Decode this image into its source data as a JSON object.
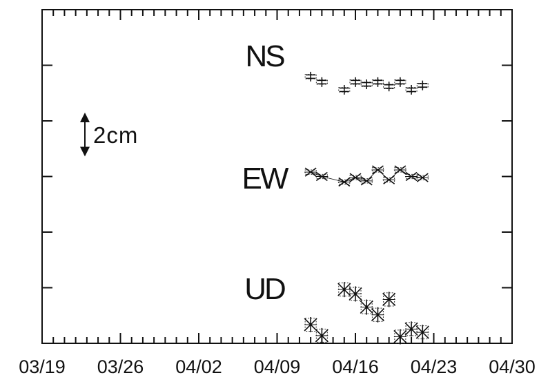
{
  "chart_data": {
    "type": "scatter",
    "title": "",
    "xlabel": "",
    "ylabel": "",
    "x_ticks": [
      "03/19",
      "03/26",
      "04/02",
      "04/09",
      "04/16",
      "04/23",
      "04/30"
    ],
    "x_range": [
      "03/19",
      "04/30"
    ],
    "dates": [
      "04/12",
      "04/13",
      "04/15",
      "04/16",
      "04/17",
      "04/18",
      "04/19",
      "04/20",
      "04/21",
      "04/22",
      "04/23"
    ],
    "y_unit": "cm",
    "y_range_cm": [
      -7.8,
      7.4
    ],
    "scale_bar": {
      "label": "2cm",
      "length_cm": 2
    },
    "series": [
      {
        "name": "NS",
        "marker": "double-plus",
        "values_cm": [
          0.35,
          0.1,
          -0.25,
          0.1,
          0.0,
          0.1,
          -0.1,
          0.1,
          -0.25,
          -0.05,
          null
        ],
        "errors_cm": [
          0.1,
          0.1,
          0.1,
          0.1,
          0.1,
          0.1,
          0.1,
          0.1,
          0.1,
          0.1,
          null
        ]
      },
      {
        "name": "EW",
        "marker": "x",
        "values_cm": [
          0.0,
          -0.2,
          -0.45,
          -0.25,
          -0.4,
          0.1,
          -0.35,
          0.1,
          -0.2,
          -0.25,
          null
        ],
        "errors_cm": [
          0.1,
          0.1,
          0.1,
          0.1,
          0.1,
          0.1,
          0.1,
          0.1,
          0.1,
          0.1,
          null
        ]
      },
      {
        "name": "UD",
        "marker": "asterisk",
        "values_cm": [
          1.05,
          0.55,
          2.65,
          2.45,
          1.85,
          1.5,
          2.2,
          0.5,
          0.85,
          0.7,
          null
        ],
        "errors_cm": [
          0.3,
          0.3,
          0.3,
          0.3,
          0.3,
          0.3,
          0.3,
          0.3,
          0.3,
          0.3,
          null
        ]
      }
    ],
    "series_offsets_cm": [
      4.0,
      0.0,
      -8.0
    ],
    "grid": false,
    "legend": "none"
  }
}
